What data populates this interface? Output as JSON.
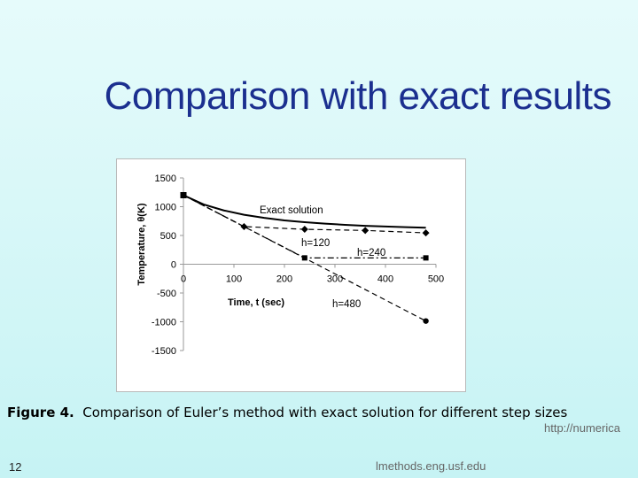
{
  "slide": {
    "title": "Comparison with exact results",
    "caption_label": "Figure 4.",
    "caption_text": "Comparison of Euler’s method with exact solution for different step sizes",
    "slide_number": "12",
    "url_part1": "http://numerica",
    "url_part2": "lmethods.eng.usf.edu"
  },
  "chart_data": {
    "type": "line",
    "xlabel": "Time, t (sec)",
    "ylabel": "Temperature, θ(K)",
    "xlim": [
      0,
      500
    ],
    "ylim": [
      -1500,
      1500
    ],
    "x_ticks": [
      0,
      100,
      200,
      300,
      400,
      500
    ],
    "y_ticks": [
      1500,
      1000,
      500,
      0,
      -500,
      -1000,
      -1500
    ],
    "grid": false,
    "series": [
      {
        "name": "Exact solution",
        "style": "solid",
        "marker": "none",
        "color": "#000000",
        "x": [
          0,
          40,
          80,
          120,
          160,
          200,
          240,
          280,
          320,
          360,
          400,
          440,
          480
        ],
        "y": [
          1200,
          1040,
          935,
          860,
          805,
          762,
          730,
          705,
          685,
          668,
          655,
          644,
          635
        ]
      },
      {
        "name": "h=120",
        "style": "dashed",
        "marker": "diamond",
        "color": "#000000",
        "x": [
          0,
          120,
          240,
          360,
          480
        ],
        "y": [
          1200,
          654,
          607,
          587,
          545
        ]
      },
      {
        "name": "h=240",
        "style": "dashdot",
        "marker": "square",
        "color": "#000000",
        "x": [
          0,
          240,
          480
        ],
        "y": [
          1200,
          110,
          110
        ]
      },
      {
        "name": "h=480",
        "style": "dashed",
        "marker": "circle",
        "color": "#000000",
        "x": [
          0,
          480
        ],
        "y": [
          1200,
          -987
        ]
      }
    ]
  }
}
